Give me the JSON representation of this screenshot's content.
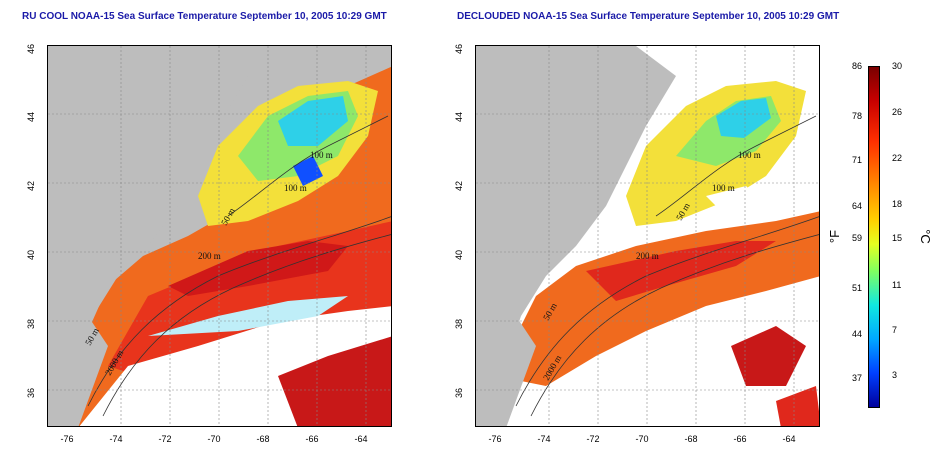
{
  "titles": {
    "left": "RU COOL NOAA-15 Sea Surface Temperature September 10, 2005 10:29 GMT",
    "right": "DECLOUDED NOAA-15 Sea Surface Temperature September 10, 2005 10:29 GMT"
  },
  "lat_ticks": [
    "46",
    "44",
    "42",
    "40",
    "38",
    "36"
  ],
  "lon_ticks": [
    "-76",
    "-74",
    "-72",
    "-70",
    "-68",
    "-66",
    "-64"
  ],
  "contour_labels": [
    "100 m",
    "100 m",
    "50 m",
    "200 m",
    "50 m",
    "2000 m"
  ],
  "colorbar": {
    "fahrenheit": [
      "86",
      "78",
      "71",
      "64",
      "59",
      "51",
      "44",
      "37"
    ],
    "celsius": [
      "30",
      "26",
      "22",
      "18",
      "15",
      "11",
      "7",
      "3"
    ],
    "unit_f": "°F",
    "unit_c": "°C"
  },
  "colors": {
    "land": "#bdbdbd",
    "title": "#1a1aa8",
    "warm": "#e8281c",
    "cool": "#2ecfe8",
    "mid": "#f0d020"
  }
}
